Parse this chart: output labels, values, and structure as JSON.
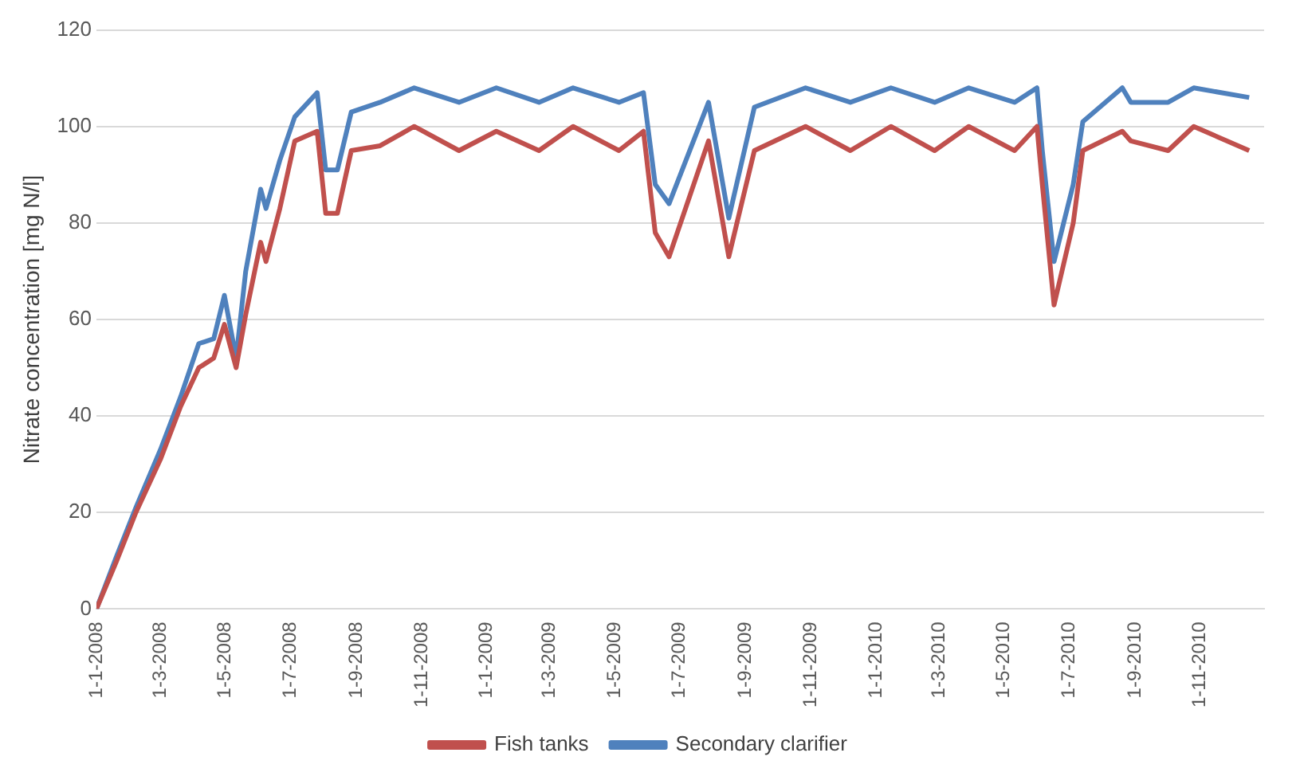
{
  "chart_data": {
    "type": "line",
    "ylabel": "Nitrate concentration [mg N/l]",
    "x": [
      "2008-01-01",
      "2008-01-20",
      "2008-02-07",
      "2008-03-01",
      "2008-03-20",
      "2008-04-06",
      "2008-04-20",
      "2008-04-30",
      "2008-05-11",
      "2008-05-20",
      "2008-06-03",
      "2008-06-08",
      "2008-06-21",
      "2008-07-05",
      "2008-07-26",
      "2008-08-03",
      "2008-08-14",
      "2008-08-27",
      "2008-09-23",
      "2008-10-25",
      "2008-12-06",
      "2009-01-10",
      "2009-02-19",
      "2009-03-23",
      "2009-05-05",
      "2009-05-28",
      "2009-06-08",
      "2009-06-21",
      "2009-07-28",
      "2009-08-16",
      "2009-09-09",
      "2009-10-27",
      "2009-12-08",
      "2010-01-15",
      "2010-02-25",
      "2010-03-29",
      "2010-05-11",
      "2010-06-01",
      "2010-06-06",
      "2010-06-17",
      "2010-07-05",
      "2010-07-14",
      "2010-08-20",
      "2010-08-28",
      "2010-10-02",
      "2010-10-26",
      "2010-12-17"
    ],
    "series": [
      {
        "name": "Fish tanks",
        "color": "#c0504d",
        "values": [
          0,
          10,
          20,
          31,
          42,
          50,
          52,
          59,
          50,
          61,
          76,
          72,
          83,
          97,
          99,
          82,
          82,
          95,
          96,
          100,
          95,
          99,
          95,
          100,
          95,
          99,
          78,
          73,
          97,
          73,
          95,
          100,
          95,
          100,
          95,
          100,
          95,
          100,
          88,
          63,
          80,
          95,
          99,
          97,
          95,
          100,
          95
        ]
      },
      {
        "name": "Secondary clarifier",
        "color": "#4f81bd",
        "values": [
          0,
          11,
          21,
          33,
          44,
          55,
          56,
          65,
          52,
          70,
          87,
          83,
          93,
          102,
          107,
          91,
          91,
          103,
          105,
          108,
          105,
          108,
          105,
          108,
          105,
          107,
          88,
          84,
          105,
          81,
          104,
          108,
          105,
          108,
          105,
          108,
          105,
          108,
          95,
          72,
          88,
          101,
          108,
          105,
          105,
          108,
          106
        ]
      }
    ],
    "xlim": [
      "2008-01-01",
      "2010-12-31"
    ],
    "xticks": [
      {
        "value": "2008-01-01",
        "label": "1-1-2008"
      },
      {
        "value": "2008-03-01",
        "label": "1-3-2008"
      },
      {
        "value": "2008-05-01",
        "label": "1-5-2008"
      },
      {
        "value": "2008-07-01",
        "label": "1-7-2008"
      },
      {
        "value": "2008-09-01",
        "label": "1-9-2008"
      },
      {
        "value": "2008-11-01",
        "label": "1-11-2008"
      },
      {
        "value": "2009-01-01",
        "label": "1-1-2009"
      },
      {
        "value": "2009-03-01",
        "label": "1-3-2009"
      },
      {
        "value": "2009-05-01",
        "label": "1-5-2009"
      },
      {
        "value": "2009-07-01",
        "label": "1-7-2009"
      },
      {
        "value": "2009-09-01",
        "label": "1-9-2009"
      },
      {
        "value": "2009-11-01",
        "label": "1-11-2009"
      },
      {
        "value": "2010-01-01",
        "label": "1-1-2010"
      },
      {
        "value": "2010-03-01",
        "label": "1-3-2010"
      },
      {
        "value": "2010-05-01",
        "label": "1-5-2010"
      },
      {
        "value": "2010-07-01",
        "label": "1-7-2010"
      },
      {
        "value": "2010-09-01",
        "label": "1-9-2010"
      },
      {
        "value": "2010-11-01",
        "label": "1-11-2010"
      }
    ],
    "ylim": [
      0,
      120
    ],
    "yticks": [
      0,
      20,
      40,
      60,
      80,
      100,
      120
    ],
    "grid": "y",
    "legend": "bottom",
    "marker": "none",
    "line_style": "solid"
  }
}
